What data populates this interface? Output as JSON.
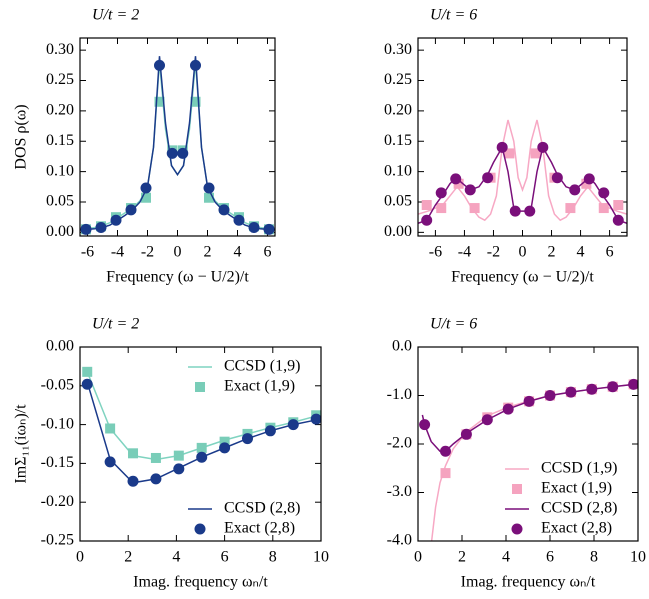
{
  "chart_data": [
    {
      "type": "line",
      "title": "U/t = 2",
      "xlabel": "Frequency (ω − U/2)/t",
      "ylabel": "DOS ρ(ω)",
      "xlim": [
        -6.5,
        6.5
      ],
      "xticks": [
        -6,
        -4,
        -2,
        0,
        2,
        4,
        6
      ],
      "ylim": [
        -0.006,
        0.32
      ],
      "yticks": [
        {
          "value": 0,
          "label": "0.00"
        },
        0.05,
        {
          "value": 0.1,
          "label": "0.10"
        },
        0.15,
        {
          "value": 0.2,
          "label": "0.20"
        },
        0.25,
        {
          "value": 0.3,
          "label": "0.30"
        }
      ],
      "series": [
        {
          "style": "line",
          "color": "#7fd3c0",
          "x": [
            -6.5,
            -6,
            -5.5,
            -5,
            -4.5,
            -4,
            -3.5,
            -3,
            -2.5,
            -2,
            -1.6,
            -1.2,
            -0.8,
            -0.4,
            0,
            0.4,
            0.8,
            1.2,
            1.6,
            2,
            2.5,
            3,
            3.5,
            4,
            4.5,
            5,
            5.5,
            6,
            6.5
          ],
          "values": [
            0.004,
            0.006,
            0.008,
            0.011,
            0.016,
            0.024,
            0.032,
            0.04,
            0.052,
            0.075,
            0.14,
            0.28,
            0.17,
            0.11,
            0.095,
            0.11,
            0.17,
            0.28,
            0.14,
            0.075,
            0.052,
            0.04,
            0.032,
            0.024,
            0.016,
            0.011,
            0.008,
            0.006,
            0.004
          ]
        },
        {
          "style": "square",
          "color": "#79cdb8",
          "x": [
            -6.1,
            -5.1,
            -4.1,
            -3.1,
            -2.1,
            -1.2,
            -0.35,
            0.35,
            1.2,
            2.1,
            3.1,
            4.1,
            5.1,
            6.1
          ],
          "values": [
            0.005,
            0.01,
            0.025,
            0.04,
            0.057,
            0.215,
            0.135,
            0.135,
            0.215,
            0.057,
            0.04,
            0.025,
            0.01,
            0.005
          ]
        },
        {
          "style": "line",
          "color": "#1a3a8a",
          "x": [
            -6.5,
            -6,
            -5.5,
            -5,
            -4.5,
            -4,
            -3.5,
            -3,
            -2.5,
            -2,
            -1.6,
            -1.2,
            -0.8,
            -0.4,
            0,
            0.4,
            0.8,
            1.2,
            1.6,
            2,
            2.5,
            3,
            3.5,
            4,
            4.5,
            5,
            5.5,
            6,
            6.5
          ],
          "values": [
            0.004,
            0.005,
            0.006,
            0.008,
            0.012,
            0.02,
            0.028,
            0.037,
            0.05,
            0.075,
            0.14,
            0.29,
            0.18,
            0.11,
            0.095,
            0.11,
            0.18,
            0.29,
            0.14,
            0.075,
            0.05,
            0.037,
            0.028,
            0.02,
            0.012,
            0.008,
            0.006,
            0.005,
            0.004
          ]
        },
        {
          "style": "circle",
          "color": "#1a3a8a",
          "x": [
            -6.1,
            -5.1,
            -4.1,
            -3.1,
            -2.1,
            -1.2,
            -0.35,
            0.35,
            1.2,
            2.1,
            3.1,
            4.1,
            5.1,
            6.1
          ],
          "values": [
            0.005,
            0.008,
            0.02,
            0.037,
            0.073,
            0.275,
            0.13,
            0.13,
            0.275,
            0.073,
            0.037,
            0.02,
            0.008,
            0.005
          ]
        }
      ]
    },
    {
      "type": "line",
      "title": "U/t = 6",
      "xlabel": "Frequency (ω − U/2)/t",
      "xlim": [
        -7.2,
        7.2
      ],
      "xticks": [
        -6,
        -4,
        -2,
        0,
        2,
        4,
        6
      ],
      "ylim": [
        -0.006,
        0.32
      ],
      "yticks": [
        {
          "value": 0,
          "label": "0.00"
        },
        0.05,
        {
          "value": 0.1,
          "label": "0.10"
        },
        0.15,
        {
          "value": 0.2,
          "label": "0.20"
        },
        0.25,
        {
          "value": 0.3,
          "label": "0.30"
        }
      ],
      "series": [
        {
          "style": "line",
          "color": "#f7a8c4",
          "x": [
            -7.2,
            -6.5,
            -6,
            -5.5,
            -5,
            -4.5,
            -4,
            -3.5,
            -3,
            -2.6,
            -2.2,
            -1.8,
            -1.4,
            -1,
            -0.6,
            -0.3,
            0,
            0.3,
            0.6,
            1,
            1.4,
            1.8,
            2.2,
            2.6,
            3,
            3.5,
            4,
            4.5,
            5,
            5.5,
            6,
            6.5,
            7.2
          ],
          "values": [
            0.03,
            0.035,
            0.04,
            0.045,
            0.06,
            0.075,
            0.06,
            0.04,
            0.025,
            0.02,
            0.03,
            0.06,
            0.14,
            0.185,
            0.15,
            0.09,
            0.07,
            0.09,
            0.15,
            0.185,
            0.14,
            0.06,
            0.03,
            0.02,
            0.025,
            0.04,
            0.06,
            0.075,
            0.06,
            0.045,
            0.04,
            0.035,
            0.03
          ]
        },
        {
          "style": "square",
          "color": "#f5a3bf",
          "x": [
            -6.6,
            -5.6,
            -4.4,
            -3.3,
            -2.2,
            -0.9,
            0.9,
            2.2,
            3.3,
            4.4,
            5.6,
            6.6
          ],
          "values": [
            0.045,
            0.04,
            0.08,
            0.04,
            0.09,
            0.13,
            0.13,
            0.09,
            0.04,
            0.08,
            0.04,
            0.045
          ]
        },
        {
          "style": "line",
          "color": "#7a0f7a",
          "x": [
            -7.2,
            -6.6,
            -6,
            -5.4,
            -5,
            -4.6,
            -4.1,
            -3.6,
            -3,
            -2.4,
            -2,
            -1.4,
            -1,
            -0.6,
            -0.3,
            0,
            0.3,
            0.6,
            1,
            1.4,
            2,
            2.4,
            3,
            3.6,
            4.1,
            4.6,
            5,
            5.4,
            6,
            6.6,
            7.2
          ],
          "values": [
            0.015,
            0.02,
            0.045,
            0.065,
            0.08,
            0.09,
            0.08,
            0.07,
            0.075,
            0.095,
            0.115,
            0.14,
            0.1,
            0.04,
            0.035,
            0.035,
            0.035,
            0.04,
            0.1,
            0.14,
            0.115,
            0.095,
            0.075,
            0.07,
            0.08,
            0.09,
            0.08,
            0.065,
            0.045,
            0.02,
            0.015
          ]
        },
        {
          "style": "circle",
          "color": "#7a0f7a",
          "x": [
            -6.6,
            -5.6,
            -4.6,
            -3.6,
            -2.4,
            -1.4,
            -0.5,
            0.5,
            1.4,
            2.4,
            3.6,
            4.6,
            5.6,
            6.6
          ],
          "values": [
            0.02,
            0.065,
            0.088,
            0.07,
            0.09,
            0.14,
            0.035,
            0.035,
            0.14,
            0.09,
            0.07,
            0.088,
            0.065,
            0.02
          ]
        }
      ]
    },
    {
      "type": "line",
      "title": "U/t = 2",
      "xlabel": "Imag. frequency ωₙ/t",
      "ylabel": "ImΣ₁₁(iωₙ)/t",
      "xlim": [
        0,
        10
      ],
      "xticks": [
        0,
        2,
        4,
        6,
        8,
        10
      ],
      "ylim": [
        -0.25,
        0
      ],
      "yticks": [
        -0.25,
        {
          "value": -0.2,
          "label": "-0.20"
        },
        -0.15,
        {
          "value": -0.1,
          "label": "-0.10"
        },
        -0.05,
        {
          "value": 0,
          "label": "0.00"
        }
      ],
      "series": [
        {
          "name": "CCSD (1,9)",
          "legend_loc": "upper right",
          "style": "line",
          "color": "#7fd3c0",
          "x": [
            0.3,
            1.25,
            2.2,
            3.15,
            4.1,
            5.05,
            6.0,
            6.95,
            7.9,
            8.85,
            9.8
          ],
          "values": [
            -0.032,
            -0.105,
            -0.14,
            -0.145,
            -0.14,
            -0.13,
            -0.12,
            -0.112,
            -0.104,
            -0.097,
            -0.089
          ]
        },
        {
          "name": "Exact (1,9)",
          "legend_loc": "upper right",
          "style": "square",
          "color": "#79cdb8",
          "x": [
            0.3,
            1.25,
            2.2,
            3.15,
            4.1,
            5.05,
            6.0,
            6.95,
            7.9,
            8.85,
            9.8
          ],
          "values": [
            -0.032,
            -0.105,
            -0.137,
            -0.143,
            -0.14,
            -0.13,
            -0.122,
            -0.112,
            -0.104,
            -0.097,
            -0.088
          ]
        },
        {
          "name": "CCSD (2,8)",
          "legend_loc": "lower right",
          "style": "line",
          "color": "#1a3a8a",
          "x": [
            0.3,
            1.25,
            2.2,
            3.15,
            4.1,
            5.05,
            6.0,
            6.95,
            7.9,
            8.85,
            9.8
          ],
          "values": [
            -0.045,
            -0.145,
            -0.175,
            -0.17,
            -0.156,
            -0.142,
            -0.13,
            -0.118,
            -0.108,
            -0.1,
            -0.094
          ]
        },
        {
          "name": "Exact (2,8)",
          "legend_loc": "lower right",
          "style": "circle",
          "color": "#1a3a8a",
          "x": [
            0.3,
            1.25,
            2.2,
            3.15,
            4.1,
            5.05,
            6.0,
            6.95,
            7.9,
            8.85,
            9.8
          ],
          "values": [
            -0.048,
            -0.148,
            -0.173,
            -0.17,
            -0.157,
            -0.142,
            -0.13,
            -0.118,
            -0.108,
            -0.1,
            -0.093
          ]
        }
      ]
    },
    {
      "type": "line",
      "title": "U/t = 6",
      "xlabel": "Imag. frequency ωₙ/t",
      "xlim": [
        0,
        10
      ],
      "xticks": [
        0,
        2,
        4,
        6,
        8,
        10
      ],
      "ylim": [
        -4,
        0
      ],
      "yticks": [
        {
          "value": -4,
          "label": "-4.0"
        },
        {
          "value": -3,
          "label": "-3.0"
        },
        {
          "value": -2,
          "label": "-2.0"
        },
        {
          "value": -1,
          "label": "-1.0"
        },
        {
          "value": 0,
          "label": "0.0"
        }
      ],
      "series": [
        {
          "name": "CCSD (1,9)",
          "legend_loc": "lower right",
          "style": "line",
          "color": "#f7a8c4",
          "x": [
            0.62,
            0.8,
            1.0,
            1.25,
            1.6,
            2.2,
            3.15,
            4.1,
            5.05,
            6.0,
            6.95,
            7.9,
            8.85,
            9.8,
            10
          ],
          "values": [
            -4.0,
            -3.3,
            -2.8,
            -2.45,
            -2.1,
            -1.75,
            -1.42,
            -1.24,
            -1.11,
            -1.0,
            -0.93,
            -0.87,
            -0.82,
            -0.77,
            -0.76
          ]
        },
        {
          "name": "Exact (1,9)",
          "legend_loc": "lower right",
          "style": "square",
          "color": "#f5a3bf",
          "x": [
            1.25,
            2.2,
            3.15,
            4.1,
            5.05,
            6.0,
            6.95,
            7.9,
            8.85,
            9.8
          ],
          "values": [
            -2.6,
            -1.8,
            -1.45,
            -1.25,
            -1.12,
            -1.0,
            -0.93,
            -0.87,
            -0.82,
            -0.77
          ]
        },
        {
          "name": "CCSD (2,8)",
          "legend_loc": "lower right",
          "style": "line",
          "color": "#7a0f7a",
          "x": [
            0.2,
            0.3,
            0.6,
            1.0,
            1.25,
            1.6,
            2.2,
            3.15,
            4.1,
            5.05,
            6.0,
            6.95,
            7.9,
            8.85,
            9.8,
            10
          ],
          "values": [
            -1.4,
            -1.6,
            -1.95,
            -2.15,
            -2.15,
            -2.0,
            -1.78,
            -1.5,
            -1.28,
            -1.12,
            -1.0,
            -0.93,
            -0.87,
            -0.82,
            -0.77,
            -0.76
          ]
        },
        {
          "name": "Exact (2,8)",
          "legend_loc": "lower right",
          "style": "circle",
          "color": "#7a0f7a",
          "x": [
            0.3,
            1.25,
            2.2,
            3.15,
            4.1,
            5.05,
            6.0,
            6.95,
            7.9,
            8.85,
            9.8
          ],
          "values": [
            -1.6,
            -2.15,
            -1.8,
            -1.5,
            -1.28,
            -1.12,
            -1.0,
            -0.93,
            -0.87,
            -0.82,
            -0.77
          ]
        }
      ]
    }
  ]
}
